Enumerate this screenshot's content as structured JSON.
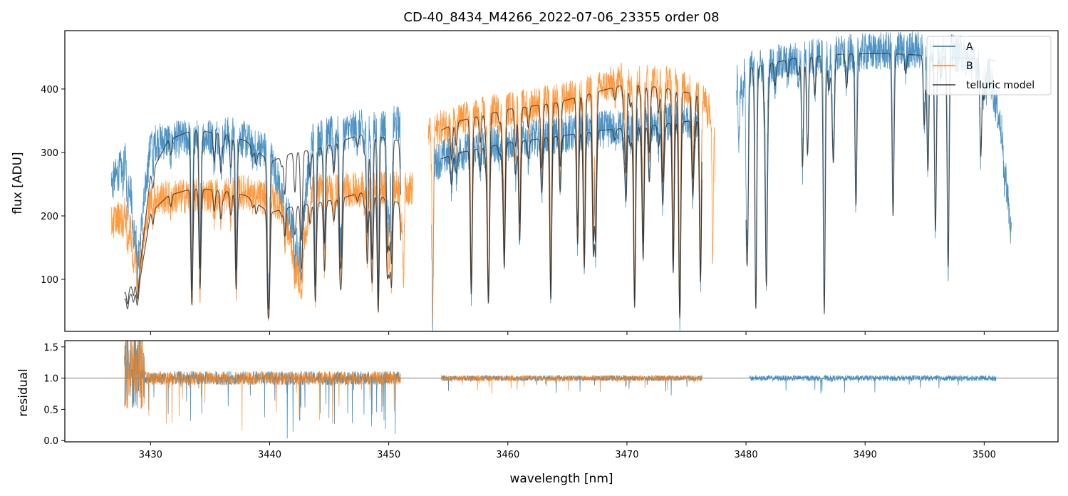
{
  "chart_data": [
    {
      "panel": "top",
      "type": "line",
      "title": "CD-40_8434_M4266_2022-07-06_23355  order 08",
      "xlabel": "",
      "ylabel": "flux [ADU]",
      "xlim": [
        3422.8,
        3506.2
      ],
      "ylim": [
        18,
        492
      ],
      "xticks": [
        3430,
        3440,
        3450,
        3460,
        3470,
        3480,
        3490,
        3500
      ],
      "yticks": [
        100,
        200,
        300,
        400
      ],
      "legend": {
        "position": "top-right",
        "entries": [
          "A",
          "B",
          "telluric model"
        ]
      },
      "series": [
        {
          "name": "A",
          "color": "#1f77b4",
          "segments": [
            {
              "x0": 3426.7,
              "x1": 3451.0,
              "profile": [
                [
                  3426.7,
                  250
                ],
                [
                  3428.0,
                  290
                ],
                [
                  3429.0,
                  140
                ],
                [
                  3430.0,
                  315
                ],
                [
                  3433.0,
                  322
                ],
                [
                  3437.0,
                  328
                ],
                [
                  3440.0,
                  300
                ],
                [
                  3442.5,
                  140
                ],
                [
                  3443.5,
                  320
                ],
                [
                  3447.0,
                  336
                ],
                [
                  3451.0,
                  345
                ]
              ]
            },
            {
              "x0": 3453.6,
              "x1": 3476.3,
              "profile": [
                [
                  3453.6,
                  280
                ],
                [
                  3454.5,
                  292
                ],
                [
                  3458.0,
                  310
                ],
                [
                  3462.0,
                  322
                ],
                [
                  3466.0,
                  332
                ],
                [
                  3470.0,
                  340
                ],
                [
                  3474.0,
                  350
                ],
                [
                  3476.3,
                  355
                ]
              ]
            },
            {
              "x0": 3479.2,
              "x1": 3502.3,
              "profile": [
                [
                  3479.2,
                  430
                ],
                [
                  3482.0,
                  438
                ],
                [
                  3486.0,
                  452
                ],
                [
                  3490.0,
                  458
                ],
                [
                  3494.0,
                  462
                ],
                [
                  3498.0,
                  455
                ],
                [
                  3500.5,
                  420
                ],
                [
                  3501.5,
                  330
                ],
                [
                  3502.3,
                  160
                ]
              ]
            }
          ]
        },
        {
          "name": "B",
          "color": "#ff7f0e",
          "segments": [
            {
              "x0": 3426.7,
              "x1": 3452.0,
              "profile": [
                [
                  3426.7,
                  190
                ],
                [
                  3428.0,
                  205
                ],
                [
                  3429.0,
                  110
                ],
                [
                  3430.0,
                  228
                ],
                [
                  3434.0,
                  232
                ],
                [
                  3438.0,
                  238
                ],
                [
                  3441.0,
                  220
                ],
                [
                  3442.5,
                  100
                ],
                [
                  3443.5,
                  240
                ],
                [
                  3448.0,
                  242
                ],
                [
                  3452.0,
                  244
                ]
              ]
            },
            {
              "x0": 3453.3,
              "x1": 3477.4,
              "profile": [
                [
                  3453.3,
                  330
                ],
                [
                  3455.0,
                  345
                ],
                [
                  3458.0,
                  362
                ],
                [
                  3462.0,
                  375
                ],
                [
                  3466.0,
                  388
                ],
                [
                  3470.0,
                  418
                ],
                [
                  3474.0,
                  408
                ],
                [
                  3477.0,
                  380
                ]
              ]
            }
          ]
        },
        {
          "name": "telluric model",
          "color": "#333333",
          "segments": [
            {
              "x0": 3427.8,
              "x1": 3451.0,
              "profile": [
                [
                  3427.8,
                  80
                ],
                [
                  3429.0,
                  100
                ],
                [
                  3430.0,
                  265
                ],
                [
                  3431.5,
                  320
                ],
                [
                  3433.5,
                  335
                ],
                [
                  3436.0,
                  330
                ],
                [
                  3438.0,
                  318
                ],
                [
                  3440.0,
                  285
                ],
                [
                  3442.0,
                  300
                ],
                [
                  3444.0,
                  305
                ],
                [
                  3446.0,
                  318
                ],
                [
                  3448.0,
                  330
                ],
                [
                  3451.0,
                  318
                ]
              ]
            },
            {
              "x0": 3427.8,
              "x1": 3451.0,
              "profile": [
                [
                  3427.8,
                  70
                ],
                [
                  3429.0,
                  85
                ],
                [
                  3430.0,
                  205
                ],
                [
                  3431.5,
                  232
                ],
                [
                  3433.5,
                  243
                ],
                [
                  3436.0,
                  240
                ],
                [
                  3438.0,
                  232
                ],
                [
                  3440.0,
                  205
                ],
                [
                  3442.0,
                  215
                ],
                [
                  3444.0,
                  220
                ],
                [
                  3446.0,
                  228
                ],
                [
                  3448.0,
                  238
                ],
                [
                  3451.0,
                  220
                ]
              ]
            },
            {
              "x0": 3454.4,
              "x1": 3476.3,
              "profile": [
                [
                  3454.4,
                  290
                ],
                [
                  3456.0,
                  300
                ],
                [
                  3460.0,
                  315
                ],
                [
                  3464.0,
                  325
                ],
                [
                  3468.0,
                  335
                ],
                [
                  3472.0,
                  342
                ],
                [
                  3476.3,
                  352
                ]
              ]
            },
            {
              "x0": 3454.4,
              "x1": 3476.3,
              "profile": [
                [
                  3454.4,
                  335
                ],
                [
                  3456.0,
                  350
                ],
                [
                  3460.0,
                  368
                ],
                [
                  3464.0,
                  378
                ],
                [
                  3468.0,
                  398
                ],
                [
                  3470.0,
                  408
                ],
                [
                  3473.0,
                  402
                ],
                [
                  3476.3,
                  390
                ]
              ]
            },
            {
              "x0": 3480.0,
              "x1": 3501.0,
              "profile": [
                [
                  3480.0,
                  432
                ],
                [
                  3484.0,
                  448
                ],
                [
                  3488.0,
                  455
                ],
                [
                  3492.0,
                  456
                ],
                [
                  3496.0,
                  452
                ],
                [
                  3501.0,
                  445
                ]
              ]
            }
          ]
        }
      ]
    },
    {
      "panel": "bottom",
      "type": "line",
      "title": "",
      "xlabel": "wavelength [nm]",
      "ylabel": "residual",
      "xlim": [
        3422.8,
        3506.2
      ],
      "ylim": [
        -0.02,
        1.6
      ],
      "xticks": [
        3430,
        3440,
        3450,
        3460,
        3470,
        3480,
        3490,
        3500
      ],
      "xticklabels": [
        "3430",
        "3440",
        "3450",
        "3460",
        "3470",
        "3480",
        "3490",
        "3500"
      ],
      "yticks": [
        0.0,
        0.5,
        1.0,
        1.5
      ],
      "yticklabels": [
        "0.0",
        "0.5",
        "1.0",
        "1.5"
      ],
      "reference_line": 1.0,
      "series": [
        {
          "name": "A",
          "color": "#1f77b4",
          "segments": [
            {
              "x0": 3427.8,
              "x1": 3451.0
            },
            {
              "x0": 3454.4,
              "x1": 3476.3
            },
            {
              "x0": 3480.3,
              "x1": 3501.0
            }
          ]
        },
        {
          "name": "B",
          "color": "#ff7f0e",
          "segments": [
            {
              "x0": 3427.8,
              "x1": 3451.0
            },
            {
              "x0": 3454.4,
              "x1": 3476.3
            }
          ]
        }
      ]
    }
  ]
}
